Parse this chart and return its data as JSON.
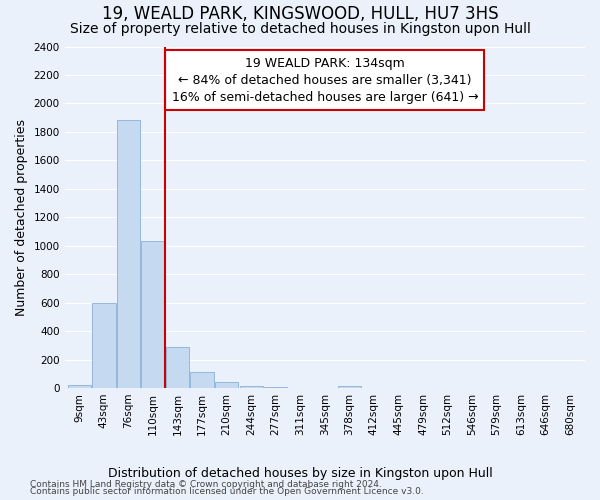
{
  "title": "19, WEALD PARK, KINGSWOOD, HULL, HU7 3HS",
  "subtitle": "Size of property relative to detached houses in Kingston upon Hull",
  "xlabel_bottom": "Distribution of detached houses by size in Kingston upon Hull",
  "ylabel": "Number of detached properties",
  "categories": [
    "9sqm",
    "43sqm",
    "76sqm",
    "110sqm",
    "143sqm",
    "177sqm",
    "210sqm",
    "244sqm",
    "277sqm",
    "311sqm",
    "345sqm",
    "378sqm",
    "412sqm",
    "445sqm",
    "479sqm",
    "512sqm",
    "546sqm",
    "579sqm",
    "613sqm",
    "646sqm",
    "680sqm"
  ],
  "values": [
    18,
    600,
    1880,
    1035,
    285,
    112,
    42,
    16,
    10,
    2,
    1,
    12,
    0,
    0,
    0,
    0,
    0,
    0,
    0,
    0,
    0
  ],
  "bar_color": "#c5d9f0",
  "bar_edge_color": "#8ab0d8",
  "background_color": "#eaf1fb",
  "grid_color": "#ffffff",
  "annotation_box_color": "#ffffff",
  "annotation_box_edge": "#cc0000",
  "vline_color": "#cc0000",
  "vline_x": 3.5,
  "annotation_title": "19 WEALD PARK: 134sqm",
  "annotation_line1": "← 84% of detached houses are smaller (3,341)",
  "annotation_line2": "16% of semi-detached houses are larger (641) →",
  "ylim": [
    0,
    2400
  ],
  "yticks": [
    0,
    200,
    400,
    600,
    800,
    1000,
    1200,
    1400,
    1600,
    1800,
    2000,
    2200,
    2400
  ],
  "footnote1": "Contains HM Land Registry data © Crown copyright and database right 2024.",
  "footnote2": "Contains public sector information licensed under the Open Government Licence v3.0.",
  "title_fontsize": 12,
  "subtitle_fontsize": 10,
  "tick_fontsize": 7.5,
  "ylabel_fontsize": 9,
  "xlabel_bottom_fontsize": 9,
  "annotation_fontsize": 9,
  "footnote_fontsize": 6.5
}
